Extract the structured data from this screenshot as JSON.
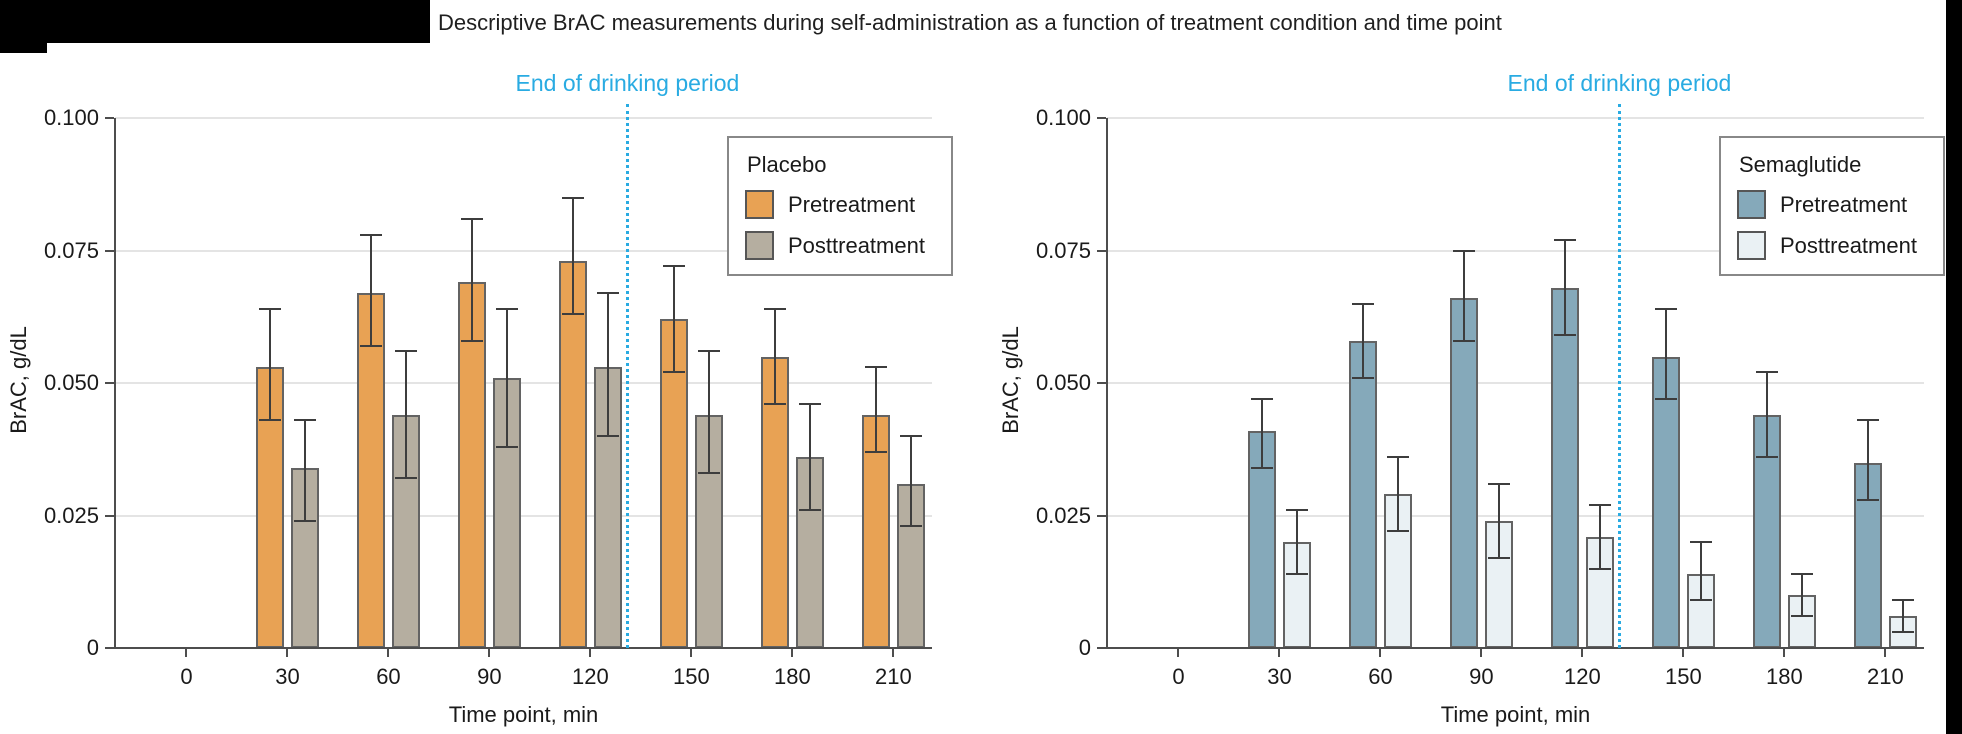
{
  "figure": {
    "title": "Descriptive BrAC measurements during self-administration as a function of treatment condition and time point",
    "background_color": "#ffffff",
    "redaction_color": "#000000",
    "annotation_color": "#29abe2",
    "gridline_color": "#e4e4e4",
    "axis_color": "#4d4d4d",
    "errorbar_color": "#3d3d3d",
    "text_color": "#1a1a1a"
  },
  "chart_data": [
    {
      "type": "bar",
      "legend_title": "Placebo",
      "xlabel": "Time point, min",
      "ylabel": "BrAC, g/dL",
      "categories": [
        "0",
        "30",
        "60",
        "90",
        "120",
        "150",
        "180",
        "210"
      ],
      "ylim": [
        0,
        0.1
      ],
      "ytick_labels": [
        "0",
        "0.025",
        "0.050",
        "0.075",
        "0.100"
      ],
      "ytick_values": [
        0,
        0.025,
        0.05,
        0.075,
        0.1
      ],
      "grid": "horizontal-light",
      "legend_position": "top-right",
      "annotation": {
        "text": "End of drinking period",
        "x_min": 131
      },
      "series": [
        {
          "name": "Pretreatment",
          "color": "#e8a254",
          "values": [
            null,
            0.053,
            0.067,
            0.069,
            0.073,
            0.062,
            0.055,
            0.044
          ],
          "err_hi": [
            null,
            0.064,
            0.078,
            0.081,
            0.085,
            0.072,
            0.064,
            0.053
          ],
          "err_lo": [
            null,
            0.043,
            0.057,
            0.058,
            0.063,
            0.052,
            0.046,
            0.037
          ]
        },
        {
          "name": "Posttreatment",
          "color": "#b5aea0",
          "values": [
            null,
            0.034,
            0.044,
            0.051,
            0.053,
            0.044,
            0.036,
            0.031
          ],
          "err_hi": [
            null,
            0.043,
            0.056,
            0.064,
            0.067,
            0.056,
            0.046,
            0.04
          ],
          "err_lo": [
            null,
            0.024,
            0.032,
            0.038,
            0.04,
            0.033,
            0.026,
            0.023
          ]
        }
      ]
    },
    {
      "type": "bar",
      "legend_title": "Semaglutide",
      "xlabel": "Time point, min",
      "ylabel": "BrAC, g/dL",
      "categories": [
        "0",
        "30",
        "60",
        "90",
        "120",
        "150",
        "180",
        "210"
      ],
      "ylim": [
        0,
        0.1
      ],
      "ytick_labels": [
        "0",
        "0.025",
        "0.050",
        "0.075",
        "0.100"
      ],
      "ytick_values": [
        0,
        0.025,
        0.05,
        0.075,
        0.1
      ],
      "grid": "horizontal-light",
      "legend_position": "top-right",
      "annotation": {
        "text": "End of drinking period",
        "x_min": 131
      },
      "series": [
        {
          "name": "Pretreatment",
          "color": "#85a9ba",
          "values": [
            null,
            0.041,
            0.058,
            0.066,
            0.068,
            0.055,
            0.044,
            0.035
          ],
          "err_hi": [
            null,
            0.047,
            0.065,
            0.075,
            0.077,
            0.064,
            0.052,
            0.043
          ],
          "err_lo": [
            null,
            0.034,
            0.051,
            0.058,
            0.059,
            0.047,
            0.036,
            0.028
          ]
        },
        {
          "name": "Posttreatment",
          "color": "#eaf1f4",
          "values": [
            null,
            0.02,
            0.029,
            0.024,
            0.021,
            0.014,
            0.01,
            0.006
          ],
          "err_hi": [
            null,
            0.026,
            0.036,
            0.031,
            0.027,
            0.02,
            0.014,
            0.009
          ],
          "err_lo": [
            null,
            0.014,
            0.022,
            0.017,
            0.015,
            0.009,
            0.006,
            0.003
          ]
        }
      ]
    }
  ]
}
